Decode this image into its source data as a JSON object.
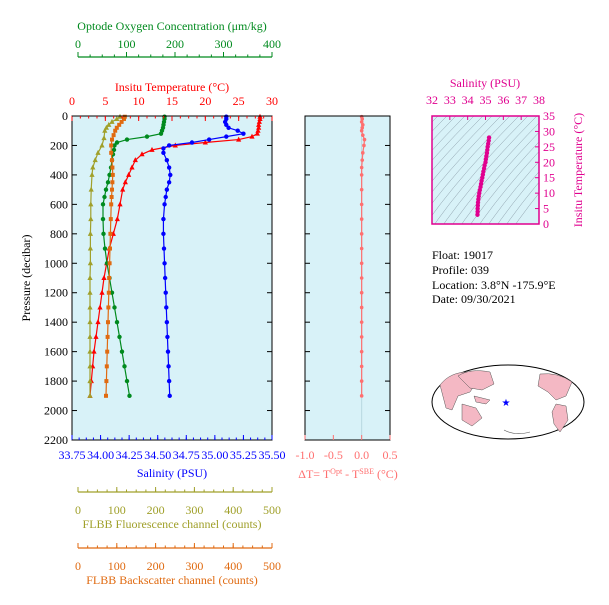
{
  "float_info": {
    "float": "Float:  19017",
    "profile": "Profile:  039",
    "location": "Location:  3.8°N  -175.9°E",
    "date": "Date:  09/30/2021"
  },
  "colors": {
    "oxygen": "#008a1e",
    "temperature": "#ff0000",
    "salinity": "#0000ff",
    "fluorescence": "#a0a02a",
    "backscatter": "#e06a10",
    "ts": "#e0008f",
    "dt": "#ff6f6f",
    "panel_bg": "#d8f2f8",
    "frame": "#000000"
  },
  "chart_data": [
    {
      "id": "profiles",
      "type": "line",
      "ylabel": "Pressure (decibar)",
      "ylim": [
        2200,
        0
      ],
      "yticks": [
        0,
        200,
        400,
        600,
        800,
        1000,
        1200,
        1400,
        1600,
        1800,
        2000,
        2200
      ],
      "axes": {
        "oxygen": {
          "label": "Optode Oxygen Concentration (μm/kg)",
          "range": [
            0,
            400
          ],
          "ticks": [
            0,
            100,
            200,
            300,
            400
          ]
        },
        "temperature": {
          "label": "Insitu Temperature (°C)",
          "range": [
            0,
            30
          ],
          "ticks": [
            0,
            5,
            10,
            15,
            20,
            25,
            30
          ]
        },
        "salinity": {
          "label": "Salinity (PSU)",
          "range": [
            33.75,
            35.5
          ],
          "ticks": [
            "33.75",
            "34.00",
            "34.25",
            "34.50",
            "34.75",
            "35.00",
            "35.25",
            "35.50"
          ]
        },
        "fluorescence": {
          "label": "FLBB Fluorescence channel (counts)",
          "range": [
            0,
            500
          ],
          "ticks": [
            0,
            100,
            200,
            300,
            400,
            500
          ]
        },
        "backscatter": {
          "label": "FLBB Backscatter channel (counts)",
          "range": [
            0,
            500
          ],
          "ticks": [
            0,
            100,
            200,
            300,
            400,
            500
          ]
        }
      },
      "series": [
        {
          "key": "temperature",
          "marker": "triangle",
          "points": [
            [
              28.2,
              5
            ],
            [
              28.2,
              20
            ],
            [
              28.1,
              40
            ],
            [
              28.0,
              60
            ],
            [
              28.0,
              80
            ],
            [
              27.9,
              100
            ],
            [
              27.8,
              120
            ],
            [
              27.0,
              140
            ],
            [
              25.0,
              160
            ],
            [
              20.0,
              180
            ],
            [
              15.5,
              200
            ],
            [
              12.0,
              230
            ],
            [
              10.5,
              260
            ],
            [
              9.5,
              300
            ],
            [
              9.0,
              350
            ],
            [
              8.5,
              400
            ],
            [
              8.0,
              450
            ],
            [
              7.6,
              500
            ],
            [
              7.2,
              600
            ],
            [
              6.8,
              700
            ],
            [
              6.2,
              800
            ],
            [
              5.6,
              900
            ],
            [
              5.2,
              1000
            ],
            [
              4.8,
              1100
            ],
            [
              4.5,
              1200
            ],
            [
              4.2,
              1300
            ],
            [
              3.9,
              1400
            ],
            [
              3.6,
              1500
            ],
            [
              3.3,
              1600
            ],
            [
              3.1,
              1700
            ],
            [
              2.9,
              1800
            ],
            [
              2.7,
              1900
            ]
          ]
        },
        {
          "key": "salinity",
          "marker": "circle",
          "points": [
            [
              35.1,
              5
            ],
            [
              35.1,
              20
            ],
            [
              35.09,
              40
            ],
            [
              35.1,
              60
            ],
            [
              35.12,
              80
            ],
            [
              35.2,
              100
            ],
            [
              35.25,
              120
            ],
            [
              35.1,
              140
            ],
            [
              34.95,
              160
            ],
            [
              34.8,
              180
            ],
            [
              34.6,
              200
            ],
            [
              34.55,
              220
            ],
            [
              34.55,
              250
            ],
            [
              34.58,
              300
            ],
            [
              34.6,
              350
            ],
            [
              34.61,
              400
            ],
            [
              34.6,
              450
            ],
            [
              34.58,
              500
            ],
            [
              34.57,
              550
            ],
            [
              34.56,
              600
            ],
            [
              34.55,
              700
            ],
            [
              34.55,
              800
            ],
            [
              34.555,
              900
            ],
            [
              34.56,
              1000
            ],
            [
              34.565,
              1100
            ],
            [
              34.57,
              1200
            ],
            [
              34.575,
              1300
            ],
            [
              34.58,
              1400
            ],
            [
              34.585,
              1500
            ],
            [
              34.59,
              1600
            ],
            [
              34.595,
              1700
            ],
            [
              34.6,
              1800
            ],
            [
              34.605,
              1900
            ]
          ]
        },
        {
          "key": "oxygen",
          "marker": "circle",
          "points": [
            [
              185,
              5
            ],
            [
              185,
              20
            ],
            [
              184,
              40
            ],
            [
              183,
              60
            ],
            [
              182,
              80
            ],
            [
              180,
              100
            ],
            [
              178,
              120
            ],
            [
              150,
              140
            ],
            [
              110,
              160
            ],
            [
              90,
              180
            ],
            [
              85,
              200
            ],
            [
              84,
              230
            ],
            [
              82,
              260
            ],
            [
              80,
              300
            ],
            [
              78,
              350
            ],
            [
              75,
              400
            ],
            [
              72,
              450
            ],
            [
              68,
              500
            ],
            [
              65,
              550
            ],
            [
              62,
              600
            ],
            [
              62,
              700
            ],
            [
              63,
              800
            ],
            [
              66,
              900
            ],
            [
              70,
              1000
            ],
            [
              75,
              1100
            ],
            [
              80,
              1200
            ],
            [
              85,
              1300
            ],
            [
              90,
              1400
            ],
            [
              95,
              1500
            ],
            [
              100,
              1600
            ],
            [
              105,
              1700
            ],
            [
              110,
              1800
            ],
            [
              115,
              1900
            ]
          ]
        },
        {
          "key": "fluorescence",
          "marker": "triangle",
          "points": [
            [
              120,
              5
            ],
            [
              112,
              20
            ],
            [
              100,
              40
            ],
            [
              92,
              60
            ],
            [
              86,
              80
            ],
            [
              82,
              100
            ],
            [
              80,
              150
            ],
            [
              75,
              200
            ],
            [
              65,
              250
            ],
            [
              58,
              300
            ],
            [
              52,
              350
            ],
            [
              50,
              400
            ],
            [
              48,
              500
            ],
            [
              47,
              600
            ],
            [
              47,
              700
            ],
            [
              46,
              800
            ],
            [
              46,
              900
            ],
            [
              46,
              1000
            ],
            [
              45,
              1100
            ],
            [
              45,
              1200
            ],
            [
              45,
              1300
            ],
            [
              45,
              1400
            ],
            [
              45,
              1500
            ],
            [
              45,
              1600
            ],
            [
              45,
              1700
            ],
            [
              45,
              1800
            ],
            [
              45,
              1900
            ]
          ]
        },
        {
          "key": "backscatter",
          "marker": "square",
          "points": [
            [
              132,
              5
            ],
            [
              130,
              20
            ],
            [
              124,
              40
            ],
            [
              118,
              60
            ],
            [
              112,
              80
            ],
            [
              108,
              100
            ],
            [
              104,
              130
            ],
            [
              100,
              160
            ],
            [
              98,
              200
            ],
            [
              98,
              250
            ],
            [
              100,
              300
            ],
            [
              101,
              350
            ],
            [
              102,
              400
            ],
            [
              101,
              450
            ],
            [
              100,
              500
            ],
            [
              99,
              550
            ],
            [
              98,
              600
            ],
            [
              97,
              700
            ],
            [
              96,
              800
            ],
            [
              95,
              900
            ],
            [
              94,
              1000
            ],
            [
              93,
              1100
            ],
            [
              92,
              1200
            ],
            [
              91,
              1300
            ],
            [
              90,
              1400
            ],
            [
              89,
              1500
            ],
            [
              88,
              1600
            ],
            [
              87,
              1700
            ],
            [
              86,
              1800
            ],
            [
              85,
              1900
            ]
          ]
        }
      ]
    },
    {
      "id": "delta_t",
      "type": "line",
      "xlabel": "ΔT= T",
      "xlabel_sup1": "Opt",
      "xlabel_mid": " - T",
      "xlabel_sup2": "SBE",
      "xlabel_end": " (°C)",
      "xlim": [
        -1.0,
        0.5
      ],
      "xticks": [
        "-1.0",
        "-0.5",
        "0.0",
        "0.5"
      ],
      "ylim": [
        2200,
        0
      ],
      "points": [
        [
          0.0,
          5
        ],
        [
          0.01,
          20
        ],
        [
          0.0,
          40
        ],
        [
          0.02,
          60
        ],
        [
          0.01,
          80
        ],
        [
          0.0,
          100
        ],
        [
          0.02,
          130
        ],
        [
          0.05,
          160
        ],
        [
          0.04,
          200
        ],
        [
          0.02,
          250
        ],
        [
          0.01,
          300
        ],
        [
          0.0,
          350
        ],
        [
          0.0,
          400
        ],
        [
          0.0,
          500
        ],
        [
          0.0,
          600
        ],
        [
          0.0,
          700
        ],
        [
          0.0,
          800
        ],
        [
          0.0,
          900
        ],
        [
          0.0,
          1000
        ],
        [
          0.0,
          1100
        ],
        [
          0.0,
          1200
        ],
        [
          0.0,
          1300
        ],
        [
          0.0,
          1400
        ],
        [
          0.0,
          1500
        ],
        [
          0.0,
          1600
        ],
        [
          0.0,
          1700
        ],
        [
          0.0,
          1800
        ],
        [
          0.0,
          1900
        ]
      ]
    },
    {
      "id": "ts_diagram",
      "type": "scatter",
      "xlabel": "Salinity (PSU)",
      "ylabel": "Insitu Temperature (°C)",
      "xlim": [
        32,
        38
      ],
      "xticks": [
        32,
        33,
        34,
        35,
        36,
        37,
        38
      ],
      "ylim": [
        0,
        35
      ],
      "yticks": [
        0,
        5,
        10,
        15,
        20,
        25,
        30,
        35
      ],
      "points": [
        [
          34.55,
          3
        ],
        [
          34.56,
          4
        ],
        [
          34.56,
          5
        ],
        [
          34.57,
          6
        ],
        [
          34.58,
          7
        ],
        [
          34.6,
          8
        ],
        [
          34.62,
          9
        ],
        [
          34.65,
          10
        ],
        [
          34.68,
          11
        ],
        [
          34.72,
          12
        ],
        [
          34.75,
          13
        ],
        [
          34.78,
          14
        ],
        [
          34.82,
          15
        ],
        [
          34.85,
          16
        ],
        [
          34.88,
          17
        ],
        [
          34.92,
          18
        ],
        [
          34.95,
          19
        ],
        [
          35.0,
          20
        ],
        [
          35.02,
          21
        ],
        [
          35.05,
          22
        ],
        [
          35.08,
          23
        ],
        [
          35.1,
          24
        ],
        [
          35.12,
          25
        ],
        [
          35.15,
          26
        ],
        [
          35.18,
          27
        ],
        [
          35.2,
          28
        ]
      ]
    }
  ]
}
